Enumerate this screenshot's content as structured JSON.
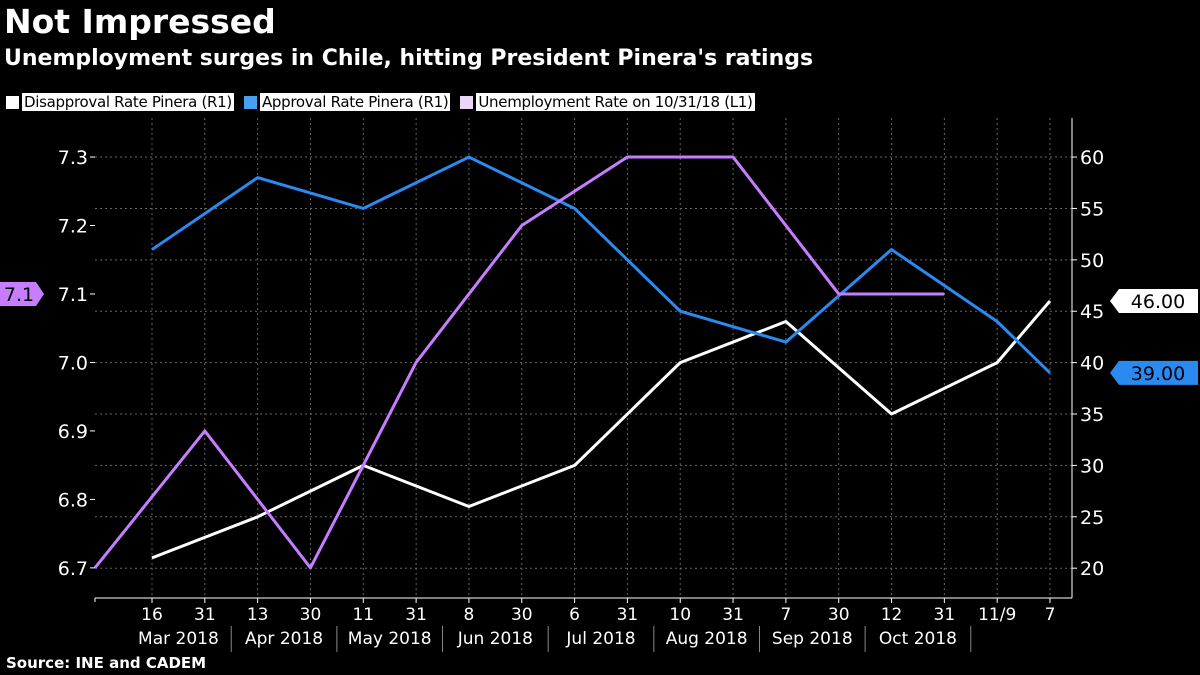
{
  "chart_data": {
    "type": "line",
    "title": "Not Impressed",
    "subtitle": "Unemployment surges in Chile, hitting President Pinera's ratings",
    "source": "Source: INE and CADEM",
    "x_tick_labels": [
      "16",
      "31",
      "13",
      "30",
      "11",
      "31",
      "8",
      "30",
      "6",
      "31",
      "10",
      "31",
      "7",
      "30",
      "12",
      "31",
      "11/9",
      "7"
    ],
    "x_tick_dates": [
      "2018-03-16",
      "2018-03-31",
      "2018-04-13",
      "2018-04-30",
      "2018-05-11",
      "2018-05-31",
      "2018-06-08",
      "2018-06-30",
      "2018-07-06",
      "2018-07-31",
      "2018-08-10",
      "2018-08-31",
      "2018-09-07",
      "2018-09-30",
      "2018-10-12",
      "2018-10-31",
      "2018-11-09",
      "2018-12-07"
    ],
    "month_labels": [
      "Mar 2018",
      "Apr 2018",
      "May 2018",
      "Jun 2018",
      "Jul 2018",
      "Aug 2018",
      "Sep 2018",
      "Oct 2018"
    ],
    "left_axis": {
      "ylim": [
        6.656,
        7.357
      ],
      "ticks": [
        "6.7",
        "6.8",
        "6.9",
        "7.0",
        "7.1",
        "7.2",
        "7.3"
      ]
    },
    "right_axis": {
      "ylim": [
        17.1,
        63.8
      ],
      "ticks": [
        "20",
        "25",
        "30",
        "35",
        "40",
        "45",
        "50",
        "55",
        "60"
      ]
    },
    "grid": true,
    "legend_position": "top-left",
    "series": [
      {
        "name": "Disapproval Rate Pinera (R1)",
        "axis": "right",
        "color": "#ffffff",
        "last_label": "46.00",
        "x": [
          "2018-03-16",
          "2018-04-13",
          "2018-05-11",
          "2018-06-08",
          "2018-07-06",
          "2018-08-10",
          "2018-09-07",
          "2018-10-12",
          "2018-11-09",
          "2018-12-07"
        ],
        "values": [
          21,
          25,
          30,
          26,
          30,
          40,
          44,
          35,
          40,
          46
        ]
      },
      {
        "name": "Approval Rate Pinera (R1)",
        "axis": "right",
        "color": "#2a8af0",
        "swatch": "#4a9ef0",
        "last_label": "39.00",
        "x": [
          "2018-03-16",
          "2018-04-13",
          "2018-05-11",
          "2018-06-08",
          "2018-07-06",
          "2018-08-10",
          "2018-09-07",
          "2018-10-12",
          "2018-11-09",
          "2018-12-07"
        ],
        "values": [
          51,
          58,
          55,
          60,
          55,
          45,
          42,
          51,
          44,
          39
        ]
      },
      {
        "name": "Unemployment Rate on 10/31/18 (L1)",
        "axis": "left",
        "color": "#c77dff",
        "swatch": "#ead6f7",
        "last_label": "7.1",
        "x": [
          "2018-02-28",
          "2018-03-31",
          "2018-04-30",
          "2018-05-31",
          "2018-06-30",
          "2018-07-31",
          "2018-08-31",
          "2018-09-30",
          "2018-10-31"
        ],
        "values": [
          6.7,
          6.9,
          6.7,
          7.0,
          7.2,
          7.3,
          7.3,
          7.1,
          7.1
        ]
      }
    ]
  }
}
